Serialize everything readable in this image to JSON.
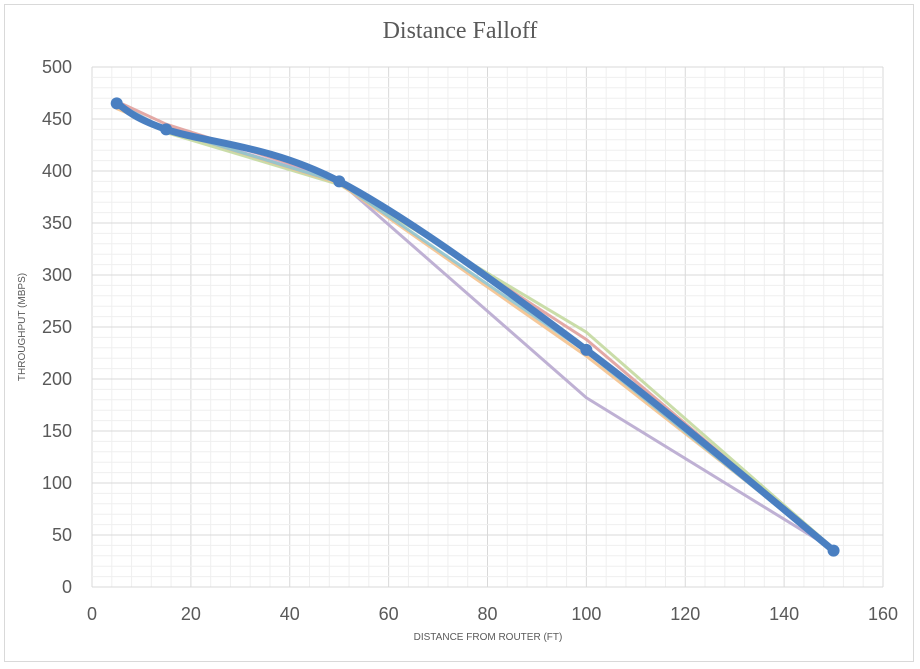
{
  "chart_data": {
    "type": "line",
    "title": "Distance Falloff",
    "xlabel": "DISTANCE FROM ROUTER (FT)",
    "ylabel": "THROUGHPUT (MBPS)",
    "xlim": [
      0,
      160
    ],
    "ylim": [
      0,
      500
    ],
    "xticks": [
      0,
      20,
      40,
      60,
      80,
      100,
      120,
      140,
      160
    ],
    "yticks": [
      0,
      50,
      100,
      150,
      200,
      250,
      300,
      350,
      400,
      450,
      500
    ],
    "grid": true,
    "legend": "none",
    "x": [
      5,
      15,
      50,
      100,
      150
    ],
    "series": [
      {
        "values": [
          467,
          445,
          392,
          238,
          36
        ],
        "color": "#e0a09c",
        "width": 3,
        "smooth": false
      },
      {
        "values": [
          463,
          437,
          387,
          245,
          37
        ],
        "color": "#c4d9a0",
        "width": 3,
        "smooth": false
      },
      {
        "values": [
          465,
          440,
          390,
          182,
          36
        ],
        "color": "#b8a9cf",
        "width": 3,
        "smooth": false
      },
      {
        "values": [
          460,
          440,
          388,
          222,
          36
        ],
        "color": "#f4c28e",
        "width": 3,
        "smooth": false
      },
      {
        "values": [
          465,
          440,
          389,
          226,
          34
        ],
        "color": "#8fc4cf",
        "width": 3,
        "smooth": false
      },
      {
        "values": [
          465,
          440,
          390,
          228,
          35
        ],
        "color": "#4a7fc1",
        "width": 7,
        "smooth": true,
        "markers": true
      }
    ]
  }
}
